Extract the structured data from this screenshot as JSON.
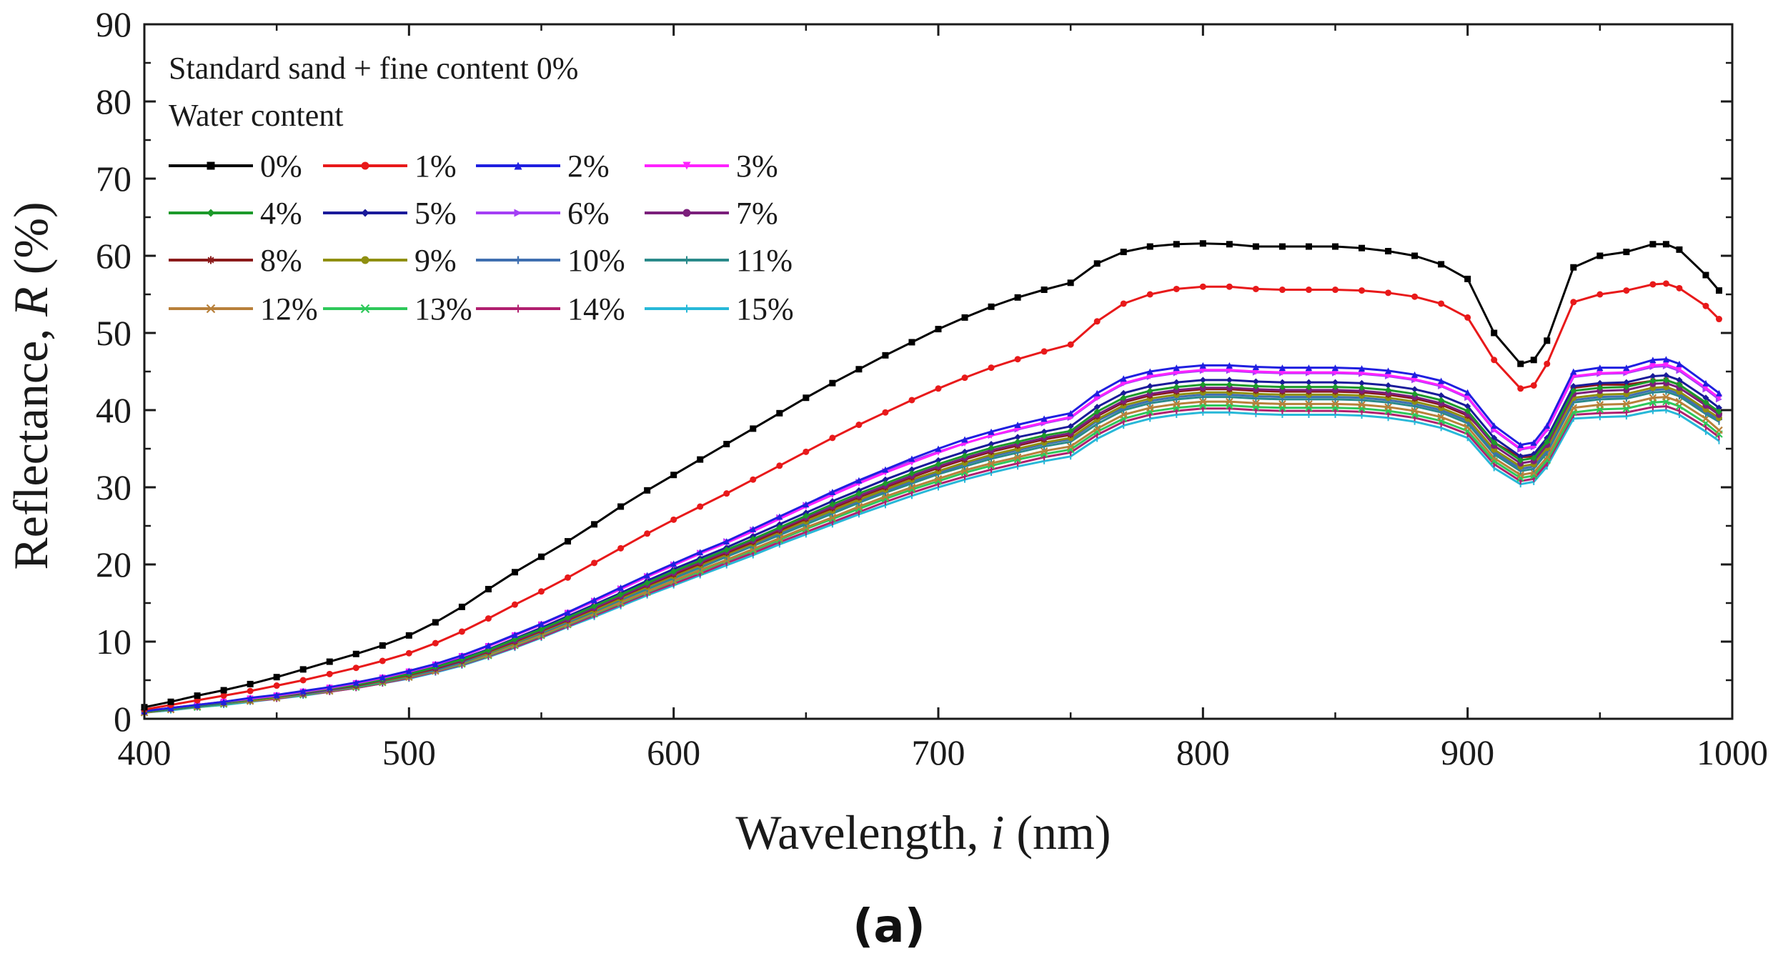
{
  "chart_data": {
    "type": "line",
    "title": "",
    "panel_label": "(a)",
    "xlabel_main": "Wavelength, ",
    "xlabel_italic": "i",
    "xlabel_unit": " (nm)",
    "ylabel_main": "Reflectance, ",
    "ylabel_italic": "R",
    "ylabel_unit": " (%)",
    "xlim": [
      400,
      1000
    ],
    "ylim": [
      0,
      90
    ],
    "xticks": [
      400,
      500,
      600,
      700,
      800,
      900,
      1000
    ],
    "yticks": [
      0,
      10,
      20,
      30,
      40,
      50,
      60,
      70,
      80,
      90
    ],
    "xtick_labels": [
      "400",
      "500",
      "600",
      "700",
      "800",
      "900",
      "1000"
    ],
    "ytick_labels": [
      "0",
      "10",
      "20",
      "30",
      "40",
      "50",
      "60",
      "70",
      "80",
      "90"
    ],
    "grid": false,
    "legend_position": "top-left",
    "legend_title_1": "Standard sand + fine content 0%",
    "legend_title_2": "Water content",
    "x": [
      400,
      410,
      420,
      430,
      440,
      450,
      460,
      470,
      480,
      490,
      500,
      510,
      520,
      530,
      540,
      550,
      560,
      570,
      580,
      590,
      600,
      610,
      620,
      630,
      640,
      650,
      660,
      670,
      680,
      690,
      700,
      710,
      720,
      730,
      740,
      750,
      760,
      770,
      780,
      790,
      800,
      810,
      820,
      830,
      840,
      850,
      860,
      870,
      880,
      890,
      900,
      910,
      920,
      925,
      930,
      940,
      950,
      960,
      970,
      975,
      980,
      990,
      995
    ],
    "series": [
      {
        "name": "0%",
        "color": "#000000",
        "marker": "square",
        "values": [
          1.5,
          2.2,
          3.0,
          3.7,
          4.5,
          5.4,
          6.4,
          7.4,
          8.4,
          9.5,
          10.8,
          12.5,
          14.5,
          16.8,
          19.0,
          21.0,
          23.0,
          25.2,
          27.5,
          29.6,
          31.6,
          33.6,
          35.6,
          37.6,
          39.6,
          41.6,
          43.5,
          45.3,
          47.1,
          48.8,
          50.5,
          52.0,
          53.4,
          54.6,
          55.6,
          56.5,
          59.0,
          60.5,
          61.2,
          61.5,
          61.6,
          61.5,
          61.2,
          61.2,
          61.2,
          61.2,
          61.0,
          60.6,
          60.0,
          58.9,
          57.0,
          50.0,
          46.0,
          46.5,
          49.0,
          58.5,
          60.0,
          60.5,
          61.5,
          61.5,
          60.8,
          57.5,
          55.5
        ]
      },
      {
        "name": "1%",
        "color": "#e8191a",
        "marker": "circle",
        "values": [
          1.2,
          1.8,
          2.4,
          3.0,
          3.6,
          4.3,
          5.0,
          5.8,
          6.6,
          7.5,
          8.5,
          9.8,
          11.3,
          13.0,
          14.8,
          16.5,
          18.3,
          20.2,
          22.1,
          24.0,
          25.8,
          27.5,
          29.2,
          31.0,
          32.8,
          34.6,
          36.4,
          38.1,
          39.7,
          41.3,
          42.8,
          44.2,
          45.5,
          46.6,
          47.6,
          48.5,
          51.5,
          53.8,
          55.0,
          55.7,
          56.0,
          56.0,
          55.7,
          55.6,
          55.6,
          55.6,
          55.5,
          55.2,
          54.7,
          53.8,
          52.0,
          46.5,
          42.8,
          43.2,
          46.0,
          54.0,
          55.0,
          55.5,
          56.3,
          56.4,
          55.8,
          53.5,
          51.8
        ]
      },
      {
        "name": "2%",
        "color": "#1f1fe0",
        "marker": "triangle-up",
        "values": [
          1.0,
          1.4,
          1.8,
          2.2,
          2.7,
          3.1,
          3.6,
          4.1,
          4.7,
          5.4,
          6.2,
          7.1,
          8.2,
          9.5,
          10.9,
          12.3,
          13.8,
          15.4,
          17.0,
          18.6,
          20.1,
          21.6,
          23.0,
          24.6,
          26.2,
          27.8,
          29.4,
          30.9,
          32.3,
          33.7,
          35.0,
          36.2,
          37.2,
          38.1,
          38.9,
          39.6,
          42.2,
          44.1,
          45.0,
          45.5,
          45.8,
          45.8,
          45.6,
          45.5,
          45.5,
          45.5,
          45.4,
          45.1,
          44.6,
          43.8,
          42.3,
          38.0,
          35.5,
          35.8,
          38.0,
          45.0,
          45.5,
          45.5,
          46.5,
          46.6,
          46.0,
          43.5,
          42.2
        ]
      },
      {
        "name": "3%",
        "color": "#ff22ff",
        "marker": "triangle-down",
        "values": [
          1.0,
          1.4,
          1.8,
          2.2,
          2.6,
          3.0,
          3.5,
          4.0,
          4.6,
          5.3,
          6.1,
          7.0,
          8.1,
          9.4,
          10.8,
          12.2,
          13.7,
          15.2,
          16.8,
          18.4,
          19.9,
          21.4,
          22.8,
          24.3,
          25.9,
          27.5,
          29.0,
          30.5,
          31.9,
          33.2,
          34.5,
          35.7,
          36.7,
          37.6,
          38.4,
          39.1,
          41.6,
          43.5,
          44.4,
          44.9,
          45.2,
          45.2,
          45.0,
          44.9,
          44.9,
          44.9,
          44.8,
          44.5,
          44.0,
          43.2,
          41.7,
          37.5,
          35.0,
          35.3,
          37.5,
          44.4,
          44.8,
          44.9,
          45.8,
          45.9,
          45.3,
          42.9,
          41.6
        ]
      },
      {
        "name": "4%",
        "color": "#1c9a2a",
        "marker": "diamond",
        "values": [
          0.9,
          1.3,
          1.7,
          2.1,
          2.5,
          2.9,
          3.4,
          3.9,
          4.4,
          5.1,
          5.8,
          6.7,
          7.7,
          8.9,
          10.3,
          11.6,
          13.1,
          14.6,
          16.1,
          17.6,
          19.1,
          20.5,
          21.9,
          23.3,
          24.8,
          26.3,
          27.8,
          29.2,
          30.5,
          31.8,
          33.0,
          34.1,
          35.1,
          35.9,
          36.7,
          37.3,
          39.8,
          41.6,
          42.5,
          43.0,
          43.3,
          43.3,
          43.1,
          43.0,
          43.0,
          43.0,
          42.9,
          42.6,
          42.1,
          41.3,
          39.9,
          35.8,
          33.5,
          33.8,
          35.9,
          42.5,
          42.9,
          43.0,
          43.8,
          43.9,
          43.3,
          41.0,
          39.8
        ]
      },
      {
        "name": "5%",
        "color": "#1a1a9a",
        "marker": "diamond",
        "values": [
          0.9,
          1.3,
          1.7,
          2.1,
          2.5,
          2.9,
          3.4,
          3.9,
          4.5,
          5.1,
          5.9,
          6.8,
          7.8,
          9.0,
          10.4,
          11.8,
          13.3,
          14.8,
          16.3,
          17.9,
          19.4,
          20.8,
          22.2,
          23.7,
          25.2,
          26.7,
          28.2,
          29.6,
          31.0,
          32.3,
          33.5,
          34.6,
          35.6,
          36.5,
          37.2,
          37.9,
          40.4,
          42.2,
          43.1,
          43.6,
          43.9,
          43.9,
          43.7,
          43.6,
          43.6,
          43.6,
          43.5,
          43.2,
          42.7,
          41.9,
          40.5,
          36.4,
          34.0,
          34.3,
          36.4,
          43.1,
          43.5,
          43.6,
          44.4,
          44.5,
          43.9,
          41.6,
          40.3
        ]
      },
      {
        "name": "6%",
        "color": "#a43ff5",
        "marker": "triangle-right",
        "values": [
          1.0,
          1.4,
          1.8,
          2.2,
          2.6,
          3.0,
          3.5,
          4.0,
          4.6,
          5.3,
          6.1,
          7.0,
          8.1,
          9.4,
          10.8,
          12.2,
          13.7,
          15.3,
          16.9,
          18.5,
          20.0,
          21.5,
          23.0,
          24.5,
          26.1,
          27.7,
          29.2,
          30.7,
          32.1,
          33.4,
          34.6,
          35.7,
          36.7,
          37.5,
          38.3,
          39.0,
          41.5,
          43.4,
          44.3,
          44.8,
          45.1,
          45.1,
          44.9,
          44.8,
          44.8,
          44.8,
          44.7,
          44.4,
          43.9,
          43.1,
          41.6,
          37.4,
          34.9,
          35.2,
          37.4,
          44.3,
          44.7,
          44.8,
          45.6,
          45.7,
          45.1,
          42.7,
          41.4
        ]
      },
      {
        "name": "7%",
        "color": "#7b1f7b",
        "marker": "circle",
        "values": [
          0.9,
          1.3,
          1.7,
          2.1,
          2.5,
          2.9,
          3.3,
          3.8,
          4.4,
          5.0,
          5.8,
          6.6,
          7.6,
          8.8,
          10.1,
          11.5,
          12.9,
          14.4,
          15.9,
          17.4,
          18.9,
          20.3,
          21.7,
          23.1,
          24.6,
          26.1,
          27.5,
          28.9,
          30.2,
          31.5,
          32.7,
          33.8,
          34.8,
          35.6,
          36.4,
          37.0,
          39.4,
          41.2,
          42.1,
          42.6,
          42.9,
          42.9,
          42.7,
          42.6,
          42.6,
          42.6,
          42.5,
          42.2,
          41.7,
          40.9,
          39.5,
          35.4,
          33.1,
          33.4,
          35.5,
          42.1,
          42.5,
          42.6,
          43.4,
          43.5,
          42.9,
          40.6,
          39.4
        ]
      },
      {
        "name": "8%",
        "color": "#8b1a1a",
        "marker": "star",
        "values": [
          0.9,
          1.3,
          1.7,
          2.1,
          2.5,
          2.9,
          3.3,
          3.8,
          4.3,
          5.0,
          5.7,
          6.5,
          7.5,
          8.7,
          10.0,
          11.4,
          12.8,
          14.3,
          15.8,
          17.3,
          18.7,
          20.1,
          21.5,
          22.9,
          24.4,
          25.9,
          27.3,
          28.7,
          30.0,
          31.3,
          32.5,
          33.6,
          34.6,
          35.4,
          36.2,
          36.8,
          39.2,
          41.0,
          41.9,
          42.4,
          42.7,
          42.7,
          42.5,
          42.4,
          42.4,
          42.4,
          42.3,
          42.0,
          41.5,
          40.7,
          39.3,
          35.8,
          33.9,
          34.0,
          36.0,
          42.9,
          43.3,
          43.3,
          43.8,
          43.9,
          43.3,
          40.9,
          39.6
        ]
      },
      {
        "name": "9%",
        "color": "#8f8f10",
        "marker": "circle",
        "values": [
          0.9,
          1.3,
          1.7,
          2.1,
          2.4,
          2.8,
          3.3,
          3.8,
          4.3,
          4.9,
          5.6,
          6.5,
          7.5,
          8.6,
          9.9,
          11.3,
          12.7,
          14.1,
          15.6,
          17.1,
          18.5,
          19.9,
          21.3,
          22.7,
          24.2,
          25.6,
          27.0,
          28.4,
          29.7,
          31.0,
          32.1,
          33.2,
          34.2,
          35.0,
          35.8,
          36.4,
          38.8,
          40.6,
          41.5,
          42.0,
          42.3,
          42.3,
          42.1,
          42.0,
          42.0,
          42.0,
          41.9,
          41.6,
          41.1,
          40.3,
          38.9,
          34.9,
          32.7,
          33.0,
          35.1,
          41.6,
          42.0,
          42.1,
          42.9,
          43.0,
          42.4,
          40.1,
          39.0
        ]
      },
      {
        "name": "10%",
        "color": "#3f6fb0",
        "marker": "plus",
        "values": [
          0.9,
          1.3,
          1.6,
          2.0,
          2.4,
          2.8,
          3.3,
          3.7,
          4.3,
          4.9,
          5.6,
          6.4,
          7.4,
          8.6,
          9.9,
          11.2,
          12.6,
          14.1,
          15.5,
          17.0,
          18.4,
          19.8,
          21.2,
          22.6,
          24.0,
          25.5,
          26.9,
          28.2,
          29.5,
          30.8,
          31.9,
          33.0,
          34.0,
          34.8,
          35.6,
          36.2,
          38.6,
          40.3,
          41.2,
          41.7,
          42.0,
          42.0,
          41.8,
          41.7,
          41.7,
          41.7,
          41.6,
          41.3,
          40.8,
          40.0,
          38.6,
          34.6,
          32.4,
          32.7,
          34.8,
          41.3,
          41.7,
          41.8,
          42.6,
          42.7,
          42.1,
          39.8,
          38.8
        ]
      },
      {
        "name": "11%",
        "color": "#2a8a8a",
        "marker": "dash",
        "values": [
          0.9,
          1.2,
          1.6,
          2.0,
          2.4,
          2.8,
          3.2,
          3.7,
          4.2,
          4.8,
          5.5,
          6.3,
          7.3,
          8.5,
          9.8,
          11.1,
          12.5,
          13.9,
          15.4,
          16.8,
          18.2,
          19.6,
          21.0,
          22.4,
          23.8,
          25.2,
          26.6,
          28.0,
          29.3,
          30.5,
          31.7,
          32.7,
          33.7,
          34.5,
          35.3,
          35.9,
          38.2,
          40.0,
          40.9,
          41.4,
          41.7,
          41.7,
          41.5,
          41.4,
          41.4,
          41.4,
          41.3,
          41.0,
          40.5,
          39.7,
          38.3,
          34.3,
          32.1,
          32.4,
          34.5,
          41.0,
          41.4,
          41.5,
          42.3,
          42.4,
          41.8,
          39.5,
          38.5
        ]
      },
      {
        "name": "12%",
        "color": "#b8803a",
        "marker": "x",
        "values": [
          0.8,
          1.2,
          1.6,
          2.0,
          2.3,
          2.7,
          3.2,
          3.6,
          4.2,
          4.8,
          5.4,
          6.2,
          7.2,
          8.3,
          9.6,
          10.9,
          12.3,
          13.7,
          15.1,
          16.5,
          17.9,
          19.3,
          20.6,
          22.0,
          23.4,
          24.8,
          26.1,
          27.5,
          28.8,
          30.0,
          31.1,
          32.2,
          33.1,
          33.9,
          34.7,
          35.3,
          37.6,
          39.4,
          40.3,
          40.8,
          41.1,
          41.1,
          40.9,
          40.8,
          40.8,
          40.8,
          40.7,
          40.4,
          39.9,
          39.1,
          37.8,
          33.8,
          31.6,
          31.9,
          33.9,
          40.3,
          40.7,
          40.8,
          41.6,
          41.7,
          41.1,
          38.9,
          37.4
        ]
      },
      {
        "name": "13%",
        "color": "#2ec85a",
        "marker": "x",
        "values": [
          0.8,
          1.2,
          1.5,
          1.9,
          2.3,
          2.7,
          3.1,
          3.6,
          4.1,
          4.7,
          5.4,
          6.2,
          7.1,
          8.2,
          9.5,
          10.8,
          12.2,
          13.6,
          15.0,
          16.4,
          17.8,
          19.1,
          20.5,
          21.8,
          23.2,
          24.6,
          25.9,
          27.2,
          28.5,
          29.7,
          30.8,
          31.9,
          32.8,
          33.6,
          34.3,
          34.9,
          37.2,
          38.9,
          39.8,
          40.3,
          40.6,
          40.6,
          40.4,
          40.3,
          40.3,
          40.3,
          40.2,
          39.9,
          39.4,
          38.6,
          37.3,
          33.4,
          31.2,
          31.5,
          33.5,
          39.7,
          40.1,
          40.2,
          41.0,
          41.1,
          40.5,
          38.3,
          36.9
        ]
      },
      {
        "name": "14%",
        "color": "#b0206f",
        "marker": "dash",
        "values": [
          0.8,
          1.2,
          1.5,
          1.9,
          2.3,
          2.6,
          3.1,
          3.5,
          4.0,
          4.6,
          5.3,
          6.1,
          7.0,
          8.1,
          9.3,
          10.6,
          12.0,
          13.4,
          14.8,
          16.2,
          17.5,
          18.8,
          20.2,
          21.5,
          22.9,
          24.2,
          25.5,
          26.8,
          28.1,
          29.3,
          30.4,
          31.4,
          32.3,
          33.1,
          33.9,
          34.5,
          36.8,
          38.5,
          39.4,
          39.9,
          40.2,
          40.2,
          40.0,
          39.9,
          39.9,
          39.9,
          39.8,
          39.5,
          39.0,
          38.2,
          36.9,
          33.0,
          30.8,
          31.1,
          33.1,
          39.4,
          39.6,
          39.7,
          40.4,
          40.5,
          39.9,
          37.8,
          36.5
        ]
      },
      {
        "name": "15%",
        "color": "#27b8d8",
        "marker": "dash",
        "values": [
          0.8,
          1.1,
          1.5,
          1.8,
          2.2,
          2.6,
          3.0,
          3.5,
          4.0,
          4.6,
          5.2,
          6.0,
          6.9,
          8.0,
          9.2,
          10.5,
          11.9,
          13.2,
          14.6,
          16.0,
          17.3,
          18.6,
          19.9,
          21.2,
          22.6,
          23.9,
          25.2,
          26.5,
          27.7,
          28.9,
          30.0,
          31.0,
          31.9,
          32.7,
          33.4,
          34.0,
          36.3,
          38.0,
          38.9,
          39.4,
          39.7,
          39.7,
          39.5,
          39.4,
          39.4,
          39.4,
          39.3,
          39.0,
          38.5,
          37.7,
          36.4,
          32.5,
          30.4,
          30.7,
          32.7,
          38.9,
          39.1,
          39.2,
          39.9,
          40.0,
          39.4,
          37.2,
          36.0
        ]
      }
    ]
  }
}
